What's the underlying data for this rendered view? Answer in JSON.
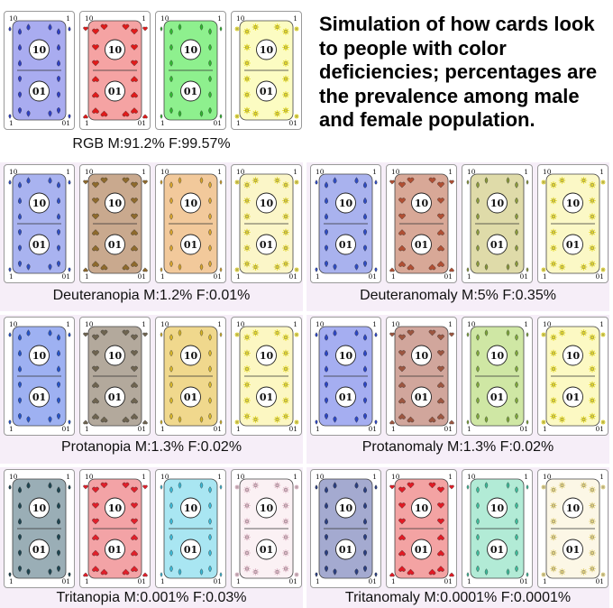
{
  "title": "Simulation of how cards look to people with color deficiencies; percentages are the prevalence among male and female population.",
  "card_rank": "10",
  "card_rank_inverted": "01",
  "card_corner_small": "1",
  "suit_icons": [
    "drop-icon",
    "heart-icon",
    "leaf-icon",
    "sun-icon"
  ],
  "panels": [
    {
      "caption": "RGB M:91.2% F:99.57%",
      "cards": [
        {
          "fill": "#a9acf0",
          "pip": "#2f3fc2",
          "leaf": "#ffffff"
        },
        {
          "fill": "#f5a3a3",
          "pip": "#e01a1a",
          "leaf": "#ffffff"
        },
        {
          "fill": "#8ef08e",
          "pip": "#2fb82f",
          "leaf": "#ffffff"
        },
        {
          "fill": "#fcfcc2",
          "pip": "#e8dc1e",
          "leaf": "#ffffff"
        }
      ]
    },
    {
      "caption": "Deuteranopia M:1.2% F:0.01%",
      "cards": [
        {
          "fill": "#a9b3f0",
          "pip": "#2f4ec2",
          "leaf": "#ffffff"
        },
        {
          "fill": "#c9a98e",
          "pip": "#8e6a2c",
          "leaf": "#ffffff"
        },
        {
          "fill": "#f2c99b",
          "pip": "#d8a42a",
          "leaf": "#ffffff"
        },
        {
          "fill": "#fbf6c8",
          "pip": "#e3d52c",
          "leaf": "#ffffff"
        }
      ]
    },
    {
      "caption": "Deuteranomaly M:5% F:0.35%",
      "cards": [
        {
          "fill": "#a9b2ee",
          "pip": "#2f4cc2",
          "leaf": "#ffffff"
        },
        {
          "fill": "#d8a897",
          "pip": "#b04f33",
          "leaf": "#ffffff"
        },
        {
          "fill": "#dfdba9",
          "pip": "#8a9a3a",
          "leaf": "#ffffff"
        },
        {
          "fill": "#fbf8c6",
          "pip": "#e6d92a",
          "leaf": "#ffffff"
        }
      ]
    },
    {
      "caption": "Protanopia M:1.3% F:0.02%",
      "cards": [
        {
          "fill": "#9eb1f2",
          "pip": "#2553c8",
          "leaf": "#ffffff"
        },
        {
          "fill": "#b3a99c",
          "pip": "#6e6450",
          "leaf": "#ffffff"
        },
        {
          "fill": "#f0d88d",
          "pip": "#d8b626",
          "leaf": "#ffffff"
        },
        {
          "fill": "#fcf7c2",
          "pip": "#e9dc2a",
          "leaf": "#ffffff"
        }
      ]
    },
    {
      "caption": "Protanomaly M:1.3% F:0.02%",
      "cards": [
        {
          "fill": "#a5aef1",
          "pip": "#2c46c4",
          "leaf": "#ffffff"
        },
        {
          "fill": "#d1a69c",
          "pip": "#9c5640",
          "leaf": "#ffffff"
        },
        {
          "fill": "#cfe7a4",
          "pip": "#7ea83a",
          "leaf": "#ffffff"
        },
        {
          "fill": "#fcf9c3",
          "pip": "#e7db26",
          "leaf": "#ffffff"
        }
      ]
    },
    {
      "caption": "Tritanopia M:0.001% F:0.03%",
      "cards": [
        {
          "fill": "#9aaeb6",
          "pip": "#1d4450",
          "leaf": "#ffffff"
        },
        {
          "fill": "#f3a3a6",
          "pip": "#e01f2a",
          "leaf": "#ffffff"
        },
        {
          "fill": "#a9e6f2",
          "pip": "#3ab9d6",
          "leaf": "#ffffff"
        },
        {
          "fill": "#fbf1f4",
          "pip": "#e0b6c6",
          "leaf": "#ffffff"
        }
      ]
    },
    {
      "caption": "Tritanomaly M:0.0001% F:0.0001%",
      "cards": [
        {
          "fill": "#a4aad0",
          "pip": "#2a3e80",
          "leaf": "#ffffff"
        },
        {
          "fill": "#f3a3a3",
          "pip": "#e01a24",
          "leaf": "#ffffff"
        },
        {
          "fill": "#b2ebd6",
          "pip": "#3cbc9a",
          "leaf": "#ffffff"
        },
        {
          "fill": "#fcf7e6",
          "pip": "#e3d27a",
          "leaf": "#ffffff"
        }
      ]
    }
  ]
}
